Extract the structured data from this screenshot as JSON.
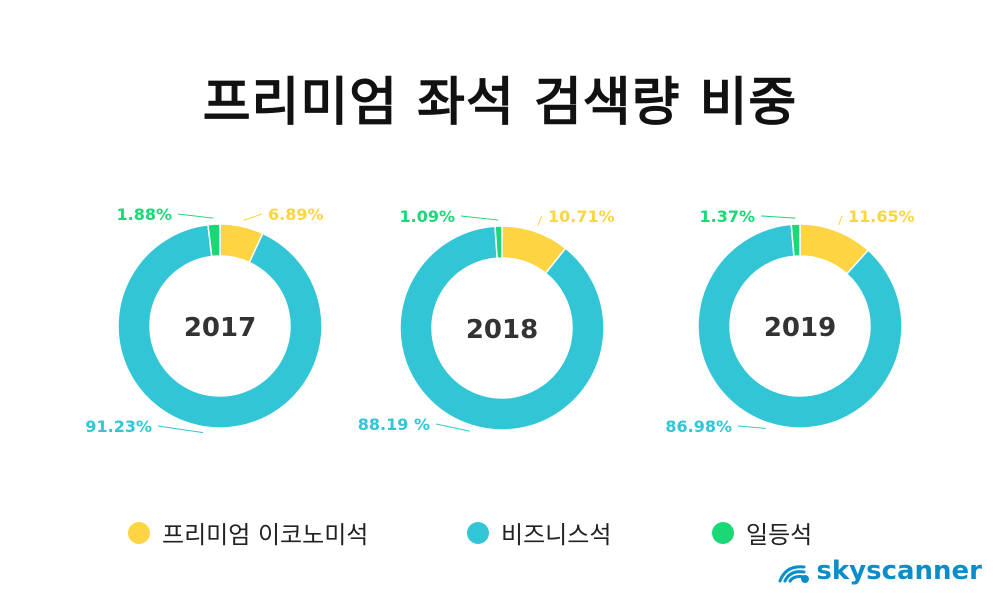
{
  "title": "프리미엄 좌석 검색량 비중",
  "colors": {
    "premium_economy": "#fdd542",
    "business": "#32c5d6",
    "first": "#1ad876"
  },
  "legend": [
    {
      "label": "프리미엄 이코노미석",
      "color": "#fdd542"
    },
    {
      "label": "비즈니스석",
      "color": "#32c5d6"
    },
    {
      "label": "일등석",
      "color": "#1ad876"
    }
  ],
  "brand": {
    "name": "skyscanner",
    "logo_icon": "skyscanner-cloud-logo"
  },
  "chart_data": [
    {
      "type": "pie",
      "center_label": "2017",
      "slices": [
        {
          "name": "프리미엄 이코노미석",
          "value": 6.89,
          "label": "6.89%"
        },
        {
          "name": "비즈니스석",
          "value": 91.23,
          "label": "91.23%"
        },
        {
          "name": "일등석",
          "value": 1.88,
          "label": "1.88%"
        }
      ]
    },
    {
      "type": "pie",
      "center_label": "2018",
      "slices": [
        {
          "name": "프리미엄 이코노미석",
          "value": 10.71,
          "label": "10.71%"
        },
        {
          "name": "비즈니스석",
          "value": 88.19,
          "label": "88.19 %"
        },
        {
          "name": "일등석",
          "value": 1.09,
          "label": "1.09%"
        }
      ]
    },
    {
      "type": "pie",
      "center_label": "2019",
      "slices": [
        {
          "name": "프리미엄 이코노미석",
          "value": 11.65,
          "label": "11.65%"
        },
        {
          "name": "비즈니스석",
          "value": 86.98,
          "label": "86.98%"
        },
        {
          "name": "일등석",
          "value": 1.37,
          "label": "1.37%"
        }
      ]
    }
  ]
}
